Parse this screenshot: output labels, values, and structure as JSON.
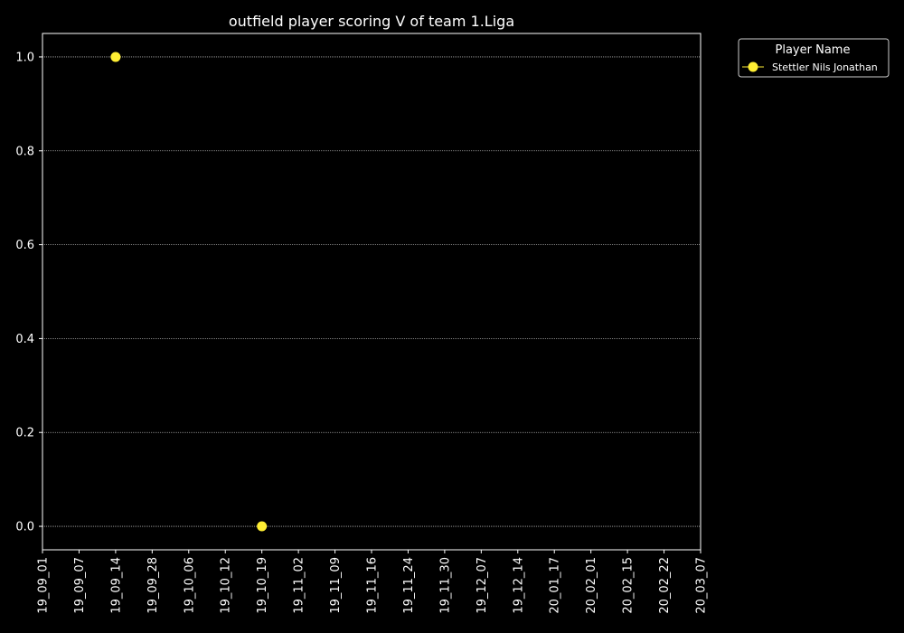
{
  "chart_data": {
    "type": "scatter",
    "title": "outfield player scoring V of team 1.Liga",
    "xlabel": "",
    "ylabel": "",
    "x_ticks": [
      "19_09_01",
      "19_09_07",
      "19_09_14",
      "19_09_28",
      "19_10_06",
      "19_10_12",
      "19_10_19",
      "19_11_02",
      "19_11_09",
      "19_11_16",
      "19_11_24",
      "19_11_30",
      "19_12_07",
      "19_12_14",
      "20_01_17",
      "20_02_01",
      "20_02_15",
      "20_02_22",
      "20_03_07"
    ],
    "y_ticks": [
      0.0,
      0.2,
      0.4,
      0.6,
      0.8,
      1.0
    ],
    "y_tick_labels": [
      "0.0",
      "0.2",
      "0.4",
      "0.6",
      "0.8",
      "1.0"
    ],
    "ylim": [
      -0.05,
      1.05
    ],
    "grid": "horizontal dotted",
    "legend": {
      "title": "Player Name",
      "placement": "outside top-right"
    },
    "series": [
      {
        "name": "Stettler Nils Jonathan",
        "color": "#ffee33",
        "points": [
          {
            "x": "19_09_14",
            "y": 1.0
          },
          {
            "x": "19_10_19",
            "y": 0.0
          }
        ]
      }
    ]
  },
  "colors": {
    "background": "#000000",
    "foreground": "#ffffff",
    "grid": "#aaaaaa"
  }
}
